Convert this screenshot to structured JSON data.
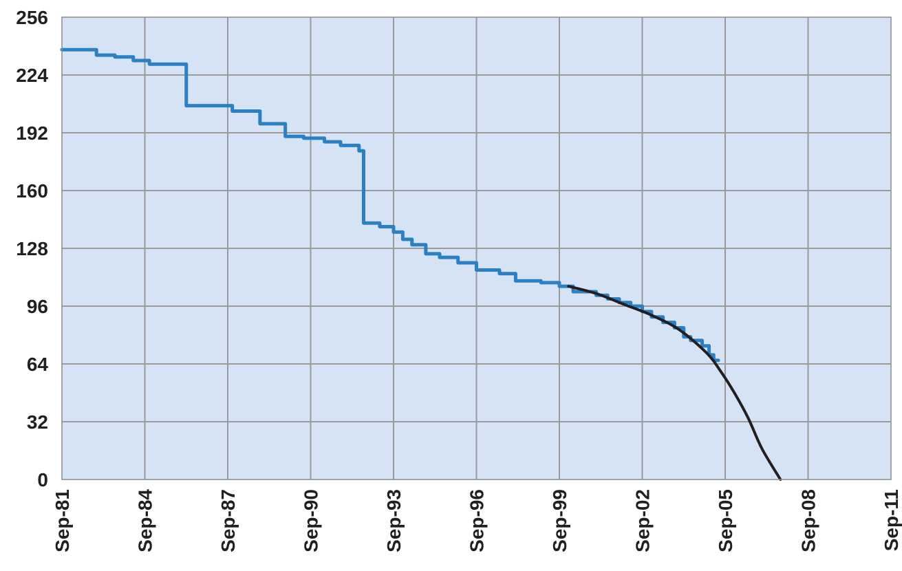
{
  "chart_data": {
    "type": "line",
    "title": "",
    "xlabel": "",
    "ylabel": "",
    "x_unit": "date",
    "xlim": [
      "1981-09",
      "2011-09"
    ],
    "ylim": [
      0,
      256
    ],
    "x_ticks": [
      "Sep-81",
      "Sep-84",
      "Sep-87",
      "Sep-90",
      "Sep-93",
      "Sep-96",
      "Sep-99",
      "Sep-02",
      "Sep-05",
      "Sep-08",
      "Sep-11"
    ],
    "y_ticks": [
      "0",
      "32",
      "64",
      "96",
      "128",
      "160",
      "192",
      "224",
      "256"
    ],
    "grid": true,
    "legend": "none",
    "colors": {
      "plot_background": "#d6e3f5",
      "grid": "#9a9a9a",
      "data_series": "#2b7fc3",
      "fit_series": "#231f20"
    },
    "series": [
      {
        "style": "step",
        "color": "#2b7fc3",
        "points": [
          [
            "1981-09",
            238
          ],
          [
            "1982-12",
            238
          ],
          [
            "1982-12",
            235
          ],
          [
            "1983-08",
            235
          ],
          [
            "1983-08",
            234
          ],
          [
            "1984-04",
            234
          ],
          [
            "1984-04",
            232
          ],
          [
            "1984-11",
            232
          ],
          [
            "1984-11",
            230
          ],
          [
            "1986-03",
            230
          ],
          [
            "1986-03",
            207
          ],
          [
            "1987-11",
            207
          ],
          [
            "1987-11",
            204
          ],
          [
            "1988-11",
            204
          ],
          [
            "1988-11",
            197
          ],
          [
            "1989-10",
            197
          ],
          [
            "1989-10",
            190
          ],
          [
            "1990-06",
            190
          ],
          [
            "1990-06",
            189
          ],
          [
            "1991-03",
            189
          ],
          [
            "1991-03",
            187
          ],
          [
            "1991-10",
            187
          ],
          [
            "1991-10",
            185
          ],
          [
            "1992-06",
            185
          ],
          [
            "1992-06",
            182
          ],
          [
            "1992-08",
            182
          ],
          [
            "1992-08",
            142
          ],
          [
            "1993-03",
            142
          ],
          [
            "1993-03",
            140
          ],
          [
            "1993-09",
            140
          ],
          [
            "1993-09",
            137
          ],
          [
            "1994-01",
            137
          ],
          [
            "1994-01",
            133
          ],
          [
            "1994-05",
            133
          ],
          [
            "1994-05",
            130
          ],
          [
            "1994-11",
            130
          ],
          [
            "1994-11",
            125
          ],
          [
            "1995-05",
            125
          ],
          [
            "1995-05",
            123
          ],
          [
            "1996-01",
            123
          ],
          [
            "1996-01",
            120
          ],
          [
            "1996-09",
            120
          ],
          [
            "1996-09",
            116
          ],
          [
            "1997-07",
            116
          ],
          [
            "1997-07",
            114
          ],
          [
            "1998-02",
            114
          ],
          [
            "1998-02",
            110
          ],
          [
            "1999-01",
            110
          ],
          [
            "1999-01",
            109
          ],
          [
            "1999-09",
            109
          ],
          [
            "1999-09",
            107
          ],
          [
            "2000-03",
            107
          ],
          [
            "2000-03",
            104
          ],
          [
            "2001-01",
            104
          ],
          [
            "2001-01",
            102
          ],
          [
            "2001-06",
            102
          ],
          [
            "2001-06",
            100
          ],
          [
            "2001-11",
            100
          ],
          [
            "2001-11",
            98
          ],
          [
            "2002-04",
            98
          ],
          [
            "2002-04",
            96
          ],
          [
            "2002-09",
            96
          ],
          [
            "2002-09",
            93
          ],
          [
            "2003-01",
            93
          ],
          [
            "2003-01",
            90
          ],
          [
            "2003-06",
            90
          ],
          [
            "2003-06",
            87
          ],
          [
            "2003-11",
            87
          ],
          [
            "2003-11",
            84
          ],
          [
            "2004-03",
            84
          ],
          [
            "2004-03",
            79
          ],
          [
            "2004-06",
            79
          ],
          [
            "2004-06",
            77
          ],
          [
            "2004-11",
            77
          ],
          [
            "2004-11",
            74
          ],
          [
            "2005-02",
            74
          ],
          [
            "2005-02",
            69
          ],
          [
            "2005-04",
            69
          ],
          [
            "2005-04",
            66
          ],
          [
            "2005-06",
            66
          ]
        ]
      },
      {
        "style": "curve",
        "color": "#231f20",
        "points": [
          [
            "2000-01",
            107
          ],
          [
            "2001-01",
            103
          ],
          [
            "2002-01",
            97
          ],
          [
            "2003-01",
            91
          ],
          [
            "2004-01",
            83
          ],
          [
            "2005-01",
            70
          ],
          [
            "2005-07",
            60
          ],
          [
            "2006-01",
            48
          ],
          [
            "2006-07",
            34
          ],
          [
            "2007-01",
            17
          ],
          [
            "2007-09",
            0
          ]
        ]
      }
    ]
  }
}
